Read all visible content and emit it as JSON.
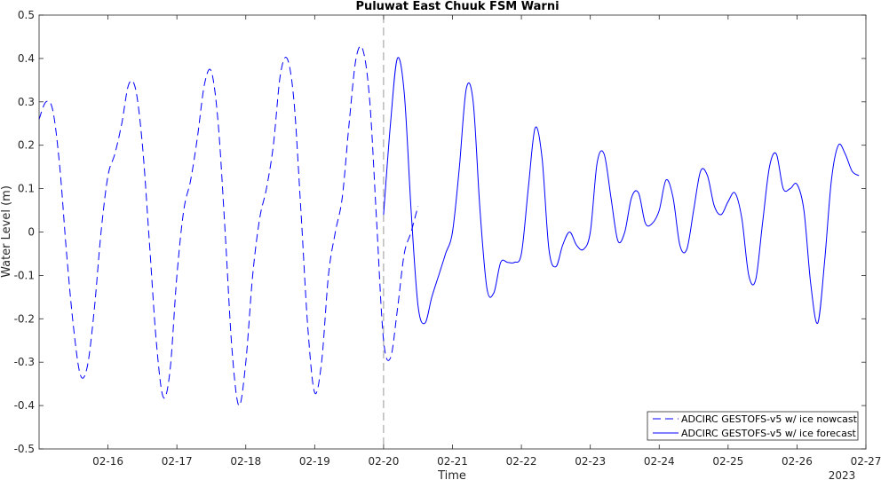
{
  "chart_data": {
    "type": "line",
    "title": "Puluwat East Chuuk FSM Warni",
    "xlabel": "Time",
    "ylabel": "Water Level (m)",
    "year_label": "2023",
    "xlim": [
      "2023-02-15 00:00",
      "2023-02-27 00:00"
    ],
    "ylim": [
      -0.5,
      0.5
    ],
    "x_ticks": [
      "02-16",
      "02-17",
      "02-18",
      "02-19",
      "02-20",
      "02-21",
      "02-22",
      "02-23",
      "02-24",
      "02-25",
      "02-26",
      "02-27"
    ],
    "y_ticks": [
      "-0.5",
      "-0.4",
      "-0.3",
      "-0.2",
      "-0.1",
      "0",
      "0.1",
      "0.2",
      "0.3",
      "0.4",
      "0.5"
    ],
    "grid": false,
    "nowcast_end": "2023-02-20 00:00",
    "legend_position": "bottom-right",
    "series": [
      {
        "name": "ADCIRC GESTOFS-v5 w/ ice nowcast",
        "color": "#0000ff",
        "style": "dashed",
        "points": [
          [
            "2023-02-15 00:00",
            0.26
          ],
          [
            "2023-02-15 02:24",
            0.3
          ],
          [
            "2023-02-15 04:48",
            0.28
          ],
          [
            "2023-02-15 07:12",
            0.15
          ],
          [
            "2023-02-15 09:36",
            -0.05
          ],
          [
            "2023-02-15 12:00",
            -0.22
          ],
          [
            "2023-02-15 14:24",
            -0.33
          ],
          [
            "2023-02-15 16:48",
            -0.31
          ],
          [
            "2023-02-15 19:12",
            -0.18
          ],
          [
            "2023-02-15 21:36",
            0.0
          ],
          [
            "2023-02-16 00:00",
            0.13
          ],
          [
            "2023-02-16 02:24",
            0.18
          ],
          [
            "2023-02-16 04:48",
            0.25
          ],
          [
            "2023-02-16 07:12",
            0.34
          ],
          [
            "2023-02-16 09:36",
            0.33
          ],
          [
            "2023-02-16 12:00",
            0.2
          ],
          [
            "2023-02-16 14:24",
            -0.02
          ],
          [
            "2023-02-16 16:48",
            -0.25
          ],
          [
            "2023-02-16 19:12",
            -0.38
          ],
          [
            "2023-02-16 21:36",
            -0.32
          ],
          [
            "2023-02-17 00:00",
            -0.1
          ],
          [
            "2023-02-17 02:24",
            0.05
          ],
          [
            "2023-02-17 04:48",
            0.12
          ],
          [
            "2023-02-17 07:12",
            0.22
          ],
          [
            "2023-02-17 09:36",
            0.34
          ],
          [
            "2023-02-17 12:00",
            0.37
          ],
          [
            "2023-02-17 14:24",
            0.25
          ],
          [
            "2023-02-17 16:48",
            0.0
          ],
          [
            "2023-02-17 19:12",
            -0.27
          ],
          [
            "2023-02-17 21:36",
            -0.4
          ],
          [
            "2023-02-18 00:00",
            -0.3
          ],
          [
            "2023-02-18 02:24",
            -0.1
          ],
          [
            "2023-02-18 04:48",
            0.03
          ],
          [
            "2023-02-18 07:12",
            0.1
          ],
          [
            "2023-02-18 09:36",
            0.2
          ],
          [
            "2023-02-18 12:00",
            0.36
          ],
          [
            "2023-02-18 14:24",
            0.4
          ],
          [
            "2023-02-18 16:48",
            0.3
          ],
          [
            "2023-02-18 19:12",
            0.05
          ],
          [
            "2023-02-18 21:36",
            -0.22
          ],
          [
            "2023-02-19 00:00",
            -0.37
          ],
          [
            "2023-02-19 02:24",
            -0.3
          ],
          [
            "2023-02-19 04:48",
            -0.1
          ],
          [
            "2023-02-19 07:12",
            0.0
          ],
          [
            "2023-02-19 09:36",
            0.08
          ],
          [
            "2023-02-19 12:00",
            0.25
          ],
          [
            "2023-02-19 14:24",
            0.4
          ],
          [
            "2023-02-19 16:48",
            0.42
          ],
          [
            "2023-02-19 19:12",
            0.3
          ],
          [
            "2023-02-19 21:36",
            0.02
          ],
          [
            "2023-02-20 00:00",
            -0.25
          ],
          [
            "2023-02-20 02:24",
            -0.29
          ],
          [
            "2023-02-20 04:48",
            -0.18
          ],
          [
            "2023-02-20 07:12",
            -0.05
          ],
          [
            "2023-02-20 09:36",
            0.0
          ],
          [
            "2023-02-20 12:00",
            0.06
          ]
        ]
      },
      {
        "name": "ADCIRC GESTOFS-v5 w/ ice forecast",
        "color": "#0000ff",
        "style": "solid",
        "points": [
          [
            "2023-02-20 00:00",
            0.04
          ],
          [
            "2023-02-20 02:24",
            0.25
          ],
          [
            "2023-02-20 04:48",
            0.4
          ],
          [
            "2023-02-20 07:12",
            0.32
          ],
          [
            "2023-02-20 09:36",
            0.05
          ],
          [
            "2023-02-20 12:00",
            -0.17
          ],
          [
            "2023-02-20 14:24",
            -0.21
          ],
          [
            "2023-02-20 16:48",
            -0.15
          ],
          [
            "2023-02-20 19:12",
            -0.1
          ],
          [
            "2023-02-20 21:36",
            -0.05
          ],
          [
            "2023-02-21 00:00",
            0.0
          ],
          [
            "2023-02-21 02:24",
            0.15
          ],
          [
            "2023-02-21 04:48",
            0.33
          ],
          [
            "2023-02-21 07:12",
            0.3
          ],
          [
            "2023-02-21 09:36",
            0.05
          ],
          [
            "2023-02-21 12:00",
            -0.13
          ],
          [
            "2023-02-21 14:24",
            -0.14
          ],
          [
            "2023-02-21 16:48",
            -0.07
          ],
          [
            "2023-02-21 19:12",
            -0.07
          ],
          [
            "2023-02-21 21:36",
            -0.07
          ],
          [
            "2023-02-22 00:00",
            -0.05
          ],
          [
            "2023-02-22 02:24",
            0.1
          ],
          [
            "2023-02-22 04:48",
            0.24
          ],
          [
            "2023-02-22 07:12",
            0.17
          ],
          [
            "2023-02-22 09:36",
            -0.04
          ],
          [
            "2023-02-22 12:00",
            -0.08
          ],
          [
            "2023-02-22 14:24",
            -0.03
          ],
          [
            "2023-02-22 16:48",
            0.0
          ],
          [
            "2023-02-22 19:12",
            -0.03
          ],
          [
            "2023-02-22 21:36",
            -0.04
          ],
          [
            "2023-02-23 00:00",
            0.0
          ],
          [
            "2023-02-23 02:24",
            0.16
          ],
          [
            "2023-02-23 04:48",
            0.18
          ],
          [
            "2023-02-23 07:12",
            0.08
          ],
          [
            "2023-02-23 09:36",
            -0.02
          ],
          [
            "2023-02-23 12:00",
            0.0
          ],
          [
            "2023-02-23 14:24",
            0.08
          ],
          [
            "2023-02-23 16:48",
            0.09
          ],
          [
            "2023-02-23 19:12",
            0.02
          ],
          [
            "2023-02-23 21:36",
            0.02
          ],
          [
            "2023-02-24 00:00",
            0.05
          ],
          [
            "2023-02-24 02:24",
            0.12
          ],
          [
            "2023-02-24 04:48",
            0.08
          ],
          [
            "2023-02-24 07:12",
            -0.03
          ],
          [
            "2023-02-24 09:36",
            -0.04
          ],
          [
            "2023-02-24 12:00",
            0.05
          ],
          [
            "2023-02-24 14:24",
            0.14
          ],
          [
            "2023-02-24 16:48",
            0.13
          ],
          [
            "2023-02-24 19:12",
            0.06
          ],
          [
            "2023-02-24 21:36",
            0.04
          ],
          [
            "2023-02-25 00:00",
            0.07
          ],
          [
            "2023-02-25 02:24",
            0.09
          ],
          [
            "2023-02-25 04:48",
            0.03
          ],
          [
            "2023-02-25 07:12",
            -0.1
          ],
          [
            "2023-02-25 09:36",
            -0.11
          ],
          [
            "2023-02-25 12:00",
            0.02
          ],
          [
            "2023-02-25 14:24",
            0.15
          ],
          [
            "2023-02-25 16:48",
            0.18
          ],
          [
            "2023-02-25 19:12",
            0.1
          ],
          [
            "2023-02-25 21:36",
            0.1
          ],
          [
            "2023-02-26 00:00",
            0.11
          ],
          [
            "2023-02-26 02:24",
            0.05
          ],
          [
            "2023-02-26 04:48",
            -0.12
          ],
          [
            "2023-02-26 07:12",
            -0.21
          ],
          [
            "2023-02-26 09:36",
            -0.07
          ],
          [
            "2023-02-26 12:00",
            0.12
          ],
          [
            "2023-02-26 14:24",
            0.2
          ],
          [
            "2023-02-26 16:48",
            0.18
          ],
          [
            "2023-02-26 19:12",
            0.14
          ],
          [
            "2023-02-26 21:36",
            0.13
          ]
        ]
      }
    ]
  }
}
